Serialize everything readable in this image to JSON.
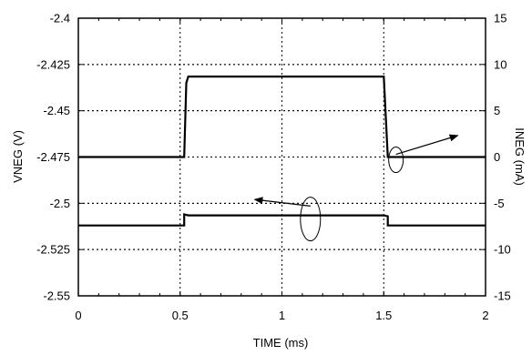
{
  "chart_data": {
    "type": "line",
    "title": "",
    "xlabel": "TIME (ms)",
    "ylabel": "VNEG (V)",
    "y2label": "INEG (mA)",
    "xlim": [
      0,
      2
    ],
    "ylim": [
      -2.55,
      -2.4
    ],
    "y2lim": [
      -15,
      15
    ],
    "x_ticks": [
      0,
      0.5,
      1,
      1.5,
      2
    ],
    "x_tick_labels": [
      "0",
      "0.5",
      "1",
      "1.5",
      "2"
    ],
    "y_ticks": [
      -2.4,
      -2.425,
      -2.45,
      -2.475,
      -2.5,
      -2.525,
      -2.55
    ],
    "y_tick_labels": [
      "-2.4",
      "-2.425",
      "-2.45",
      "-2.475",
      "-2.5",
      "-2.525",
      "-2.55"
    ],
    "y2_ticks": [
      15,
      10,
      5,
      0,
      -5,
      -10,
      -15
    ],
    "y2_tick_labels": [
      "15",
      "10",
      "5",
      "0",
      "-5",
      "-10",
      "-15"
    ],
    "grid": true,
    "grid_style": "dotted",
    "series": [
      {
        "axis": "right",
        "x": [
          0,
          0.52,
          0.53,
          0.54,
          1.5,
          1.52,
          2
        ],
        "y": [
          0,
          0,
          8,
          8.7,
          8.7,
          0,
          0
        ]
      },
      {
        "axis": "left",
        "x": [
          0,
          0.52,
          0.52,
          0.54,
          1.5,
          1.52,
          1.52,
          2
        ],
        "y": [
          -2.512,
          -2.512,
          -2.506,
          -2.5065,
          -2.5065,
          -2.507,
          -2.512,
          -2.512
        ]
      }
    ],
    "annotations": [
      {
        "type": "arrow",
        "points_to": "right axis",
        "series": 0
      },
      {
        "type": "arrow",
        "points_to": "left axis",
        "series": 1
      }
    ]
  }
}
